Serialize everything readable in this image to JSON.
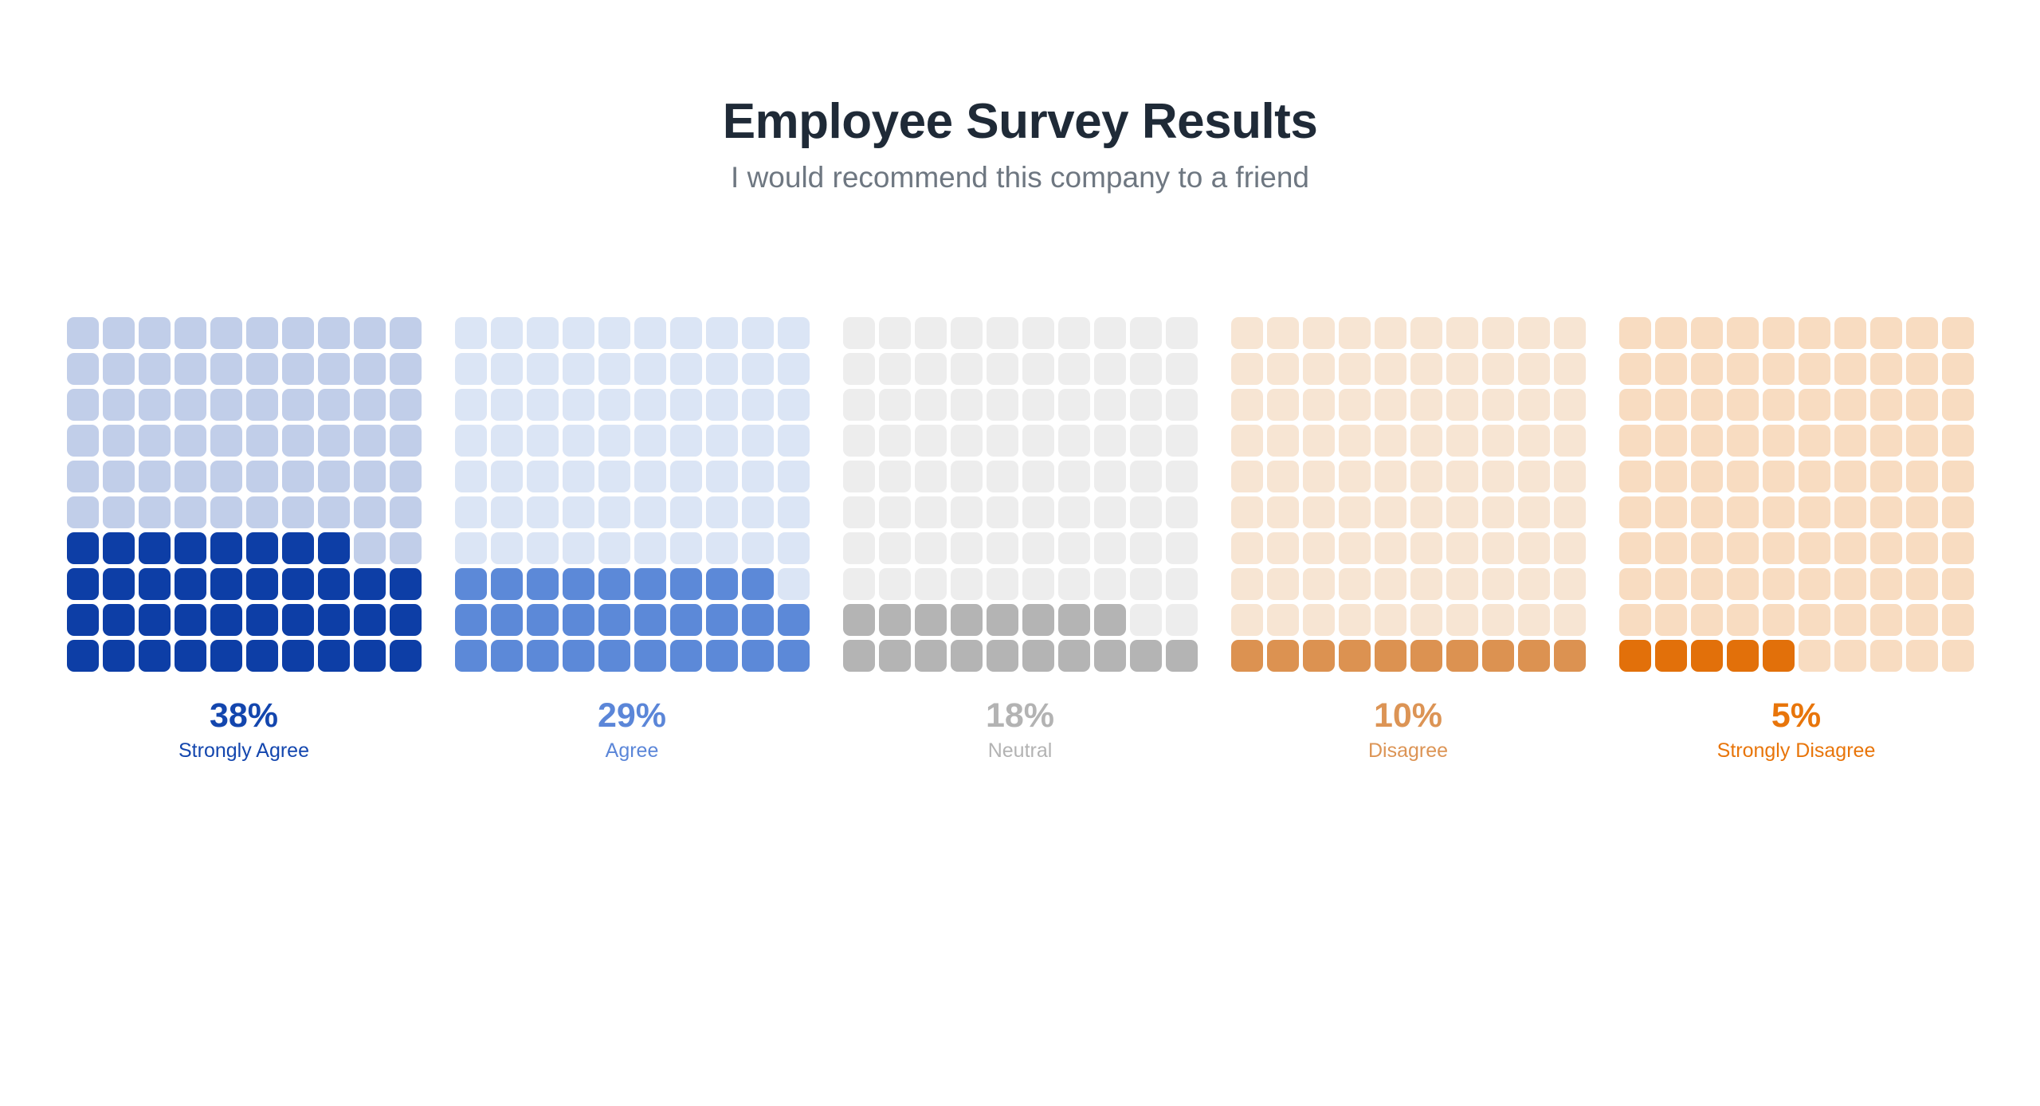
{
  "header": {
    "title": "Employee Survey Results",
    "subtitle": "I would recommend this company to a friend"
  },
  "colors": {
    "background": "#ffffff",
    "title_text": "#1f2a37",
    "subtitle_text": "#6e7781"
  },
  "chart_data": {
    "type": "waffle",
    "title": "Employee Survey Results",
    "subtitle": "I would recommend this company to a friend",
    "grid_rows": 10,
    "grid_cols": 10,
    "unit_percent_per_cell": 1,
    "fill_rule": "cells fill from bottom row upward, left to right within a row",
    "legend_position": "value and category label centered below each grid",
    "categories": [
      "Strongly Agree",
      "Agree",
      "Neutral",
      "Disagree",
      "Strongly Disagree"
    ],
    "values": [
      38,
      29,
      18,
      10,
      5
    ],
    "value_labels": [
      "38%",
      "29%",
      "18%",
      "10%",
      "5%"
    ],
    "palette": [
      {
        "category": "Strongly Agree",
        "filled": "#0d3ea6",
        "empty": "#c1cee9",
        "text": "#1346ae"
      },
      {
        "category": "Agree",
        "filled": "#5c89d8",
        "empty": "#dbe5f5",
        "text": "#5b86d8"
      },
      {
        "category": "Neutral",
        "filled": "#b4b4b4",
        "empty": "#ededed",
        "text": "#b3b3b3"
      },
      {
        "category": "Disagree",
        "filled": "#dc9251",
        "empty": "#f7e5d3",
        "text": "#dc9455"
      },
      {
        "category": "Strongly Disagree",
        "filled": "#e2700a",
        "empty": "#f8dcc1",
        "text": "#e8750a"
      }
    ]
  }
}
